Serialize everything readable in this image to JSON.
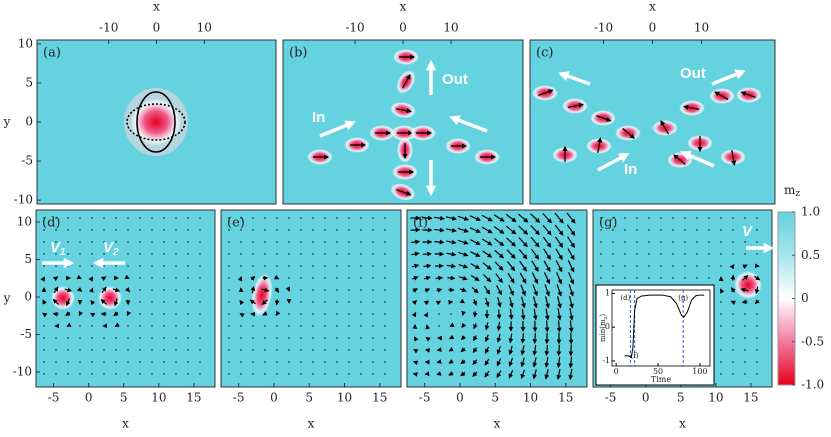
{
  "chart_data": [
    {
      "type": "heatmap",
      "title": "(a)",
      "x_label": "x",
      "y_label": "y",
      "xaxis": "top",
      "xlim": [
        -25,
        25
      ],
      "xticks": [
        -10,
        0,
        10
      ],
      "ylim": [
        -10.5,
        10.5
      ],
      "yticks": [
        -10,
        -5,
        0,
        5,
        10
      ]
    },
    {
      "type": "heatmap",
      "title": "(b)",
      "x_label": "x",
      "xaxis": "top",
      "xlim": [
        -25,
        25
      ],
      "xticks": [
        -10,
        0,
        10
      ],
      "ylim": [
        -10.5,
        10.5
      ],
      "annotations": [
        "Out",
        "In"
      ]
    },
    {
      "type": "heatmap",
      "title": "(c)",
      "x_label": "x",
      "xaxis": "top",
      "xlim": [
        -25,
        25
      ],
      "xticks": [
        -10,
        0,
        10
      ],
      "ylim": [
        -10.5,
        10.5
      ],
      "annotations": [
        "Out",
        "In"
      ]
    },
    {
      "type": "heatmap",
      "title": "(d)",
      "x_label": "x",
      "y_label": "y",
      "xaxis": "bottom",
      "xlim": [
        -7.5,
        18
      ],
      "xticks": [
        -5,
        0,
        5,
        10,
        15
      ],
      "ylim": [
        -12,
        11.6
      ],
      "yticks": [
        -10,
        -5,
        0,
        5,
        10
      ],
      "annotations": [
        {
          "text": "V",
          "subscript": "1"
        },
        {
          "text": "V",
          "subscript": "2"
        }
      ]
    },
    {
      "type": "heatmap",
      "title": "(e)",
      "x_label": "x",
      "xaxis": "bottom",
      "xlim": [
        -7.5,
        18
      ],
      "xticks": [
        -5,
        0,
        5,
        10,
        15
      ],
      "ylim": [
        -12,
        11.6
      ]
    },
    {
      "type": "heatmap",
      "title": "(f)",
      "x_label": "x",
      "xaxis": "bottom",
      "xlim": [
        -7.5,
        18
      ],
      "xticks": [
        -5,
        0,
        5,
        10,
        15
      ],
      "ylim": [
        -12,
        11.6
      ]
    },
    {
      "type": "heatmap",
      "title": "(g)",
      "x_label": "x",
      "xaxis": "bottom",
      "xlim": [
        -7.5,
        18
      ],
      "xticks": [
        -5,
        0,
        5,
        10,
        15
      ],
      "ylim": [
        -12,
        11.6
      ],
      "annotations": [
        {
          "text": "V"
        }
      ]
    },
    {
      "type": "line",
      "x_label": "Time",
      "y_label": [
        "min(m",
        "z",
        ")"
      ],
      "xlim": [
        -5,
        112
      ],
      "xticks": [
        0,
        50,
        100
      ],
      "ylim": [
        -1.15,
        1.1
      ],
      "yticks": [
        -1,
        0,
        1
      ],
      "color": "#000000",
      "x": [
        10,
        15,
        18,
        20,
        22,
        25,
        30,
        40,
        55,
        65,
        72,
        78,
        81,
        85,
        90,
        95,
        100,
        105
      ],
      "values": [
        -0.85,
        -0.85,
        -0.9,
        -0.6,
        0.5,
        0.85,
        0.92,
        0.95,
        0.95,
        0.9,
        0.7,
        0.35,
        0.3,
        0.45,
        0.8,
        0.93,
        0.95,
        0.95
      ],
      "events": [
        {
          "x": 17,
          "label": "(d)"
        },
        {
          "x": 22,
          "label": "(f)"
        },
        {
          "x": 80,
          "label": "(g)"
        }
      ],
      "event_color": "#3a5bd9"
    }
  ],
  "colorbar": {
    "title": "m",
    "title_subscript": "z",
    "colors": [
      "#e8001c",
      "#f27aa0",
      "#ffffff",
      "#a6e5ee",
      "#64d2df"
    ],
    "lim": [
      -1,
      1
    ],
    "ticks": [
      {
        "value": 1,
        "label": "1.0"
      },
      0.5,
      0,
      -0.5,
      {
        "value": -1,
        "label": "-1.0"
      }
    ]
  }
}
